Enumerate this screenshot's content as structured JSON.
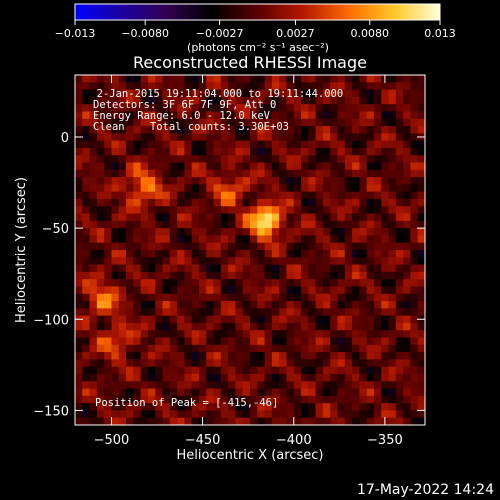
{
  "colorbar": {
    "tick_labels": [
      "-0.013",
      "-0.0080",
      "-0.0027",
      "0.0027",
      "0.0080",
      "0.013"
    ],
    "unit_label": "(photons cm⁻² s⁻¹ asec⁻²)",
    "range": [
      -0.013,
      0.013
    ],
    "colors": [
      "#0000ff",
      "#1a00a0",
      "#300050",
      "#000000",
      "#5a0000",
      "#b41800",
      "#ff6a00",
      "#ffc828",
      "#ffffdc"
    ]
  },
  "chart_data": {
    "type": "heatmap",
    "title": "Reconstructed RHESSI Image",
    "xlabel": "Heliocentric X (arcsec)",
    "ylabel": "Heliocentric Y (arcsec)",
    "xlim": [
      -520,
      -328
    ],
    "ylim": [
      -158,
      34
    ],
    "x_ticks": [
      -500,
      -450,
      -400,
      -350
    ],
    "y_ticks": [
      0,
      -50,
      -100,
      -150
    ],
    "x_tick_labels": [
      "−500",
      "−450",
      "−400",
      "−350"
    ],
    "y_tick_labels": [
      "0",
      "−50",
      "−100",
      "−150"
    ],
    "peak": [
      -415,
      -46
    ],
    "peak_value": 0.013,
    "secondary_sources": [
      {
        "x": -483,
        "y": -28,
        "value": 0.007
      },
      {
        "x": -505,
        "y": -88,
        "value": 0.006
      },
      {
        "x": -497,
        "y": -112,
        "value": 0.005
      },
      {
        "x": -435,
        "y": -28,
        "value": 0.005
      }
    ],
    "annotations": {
      "time": "  2-Jan-2015 19:11:04.000 to 19:11:44.000",
      "detectors": "Detectors: 3F 6F 7F 9F, Att 0",
      "energy": "Energy Range: 6.0 - 12.0 keV",
      "method": "Clean    Total counts: 3.30E+03",
      "peak_text": "Position of Peak = [-415,-46]"
    }
  },
  "footer": {
    "timestamp": "17-May-2022 14:24"
  }
}
